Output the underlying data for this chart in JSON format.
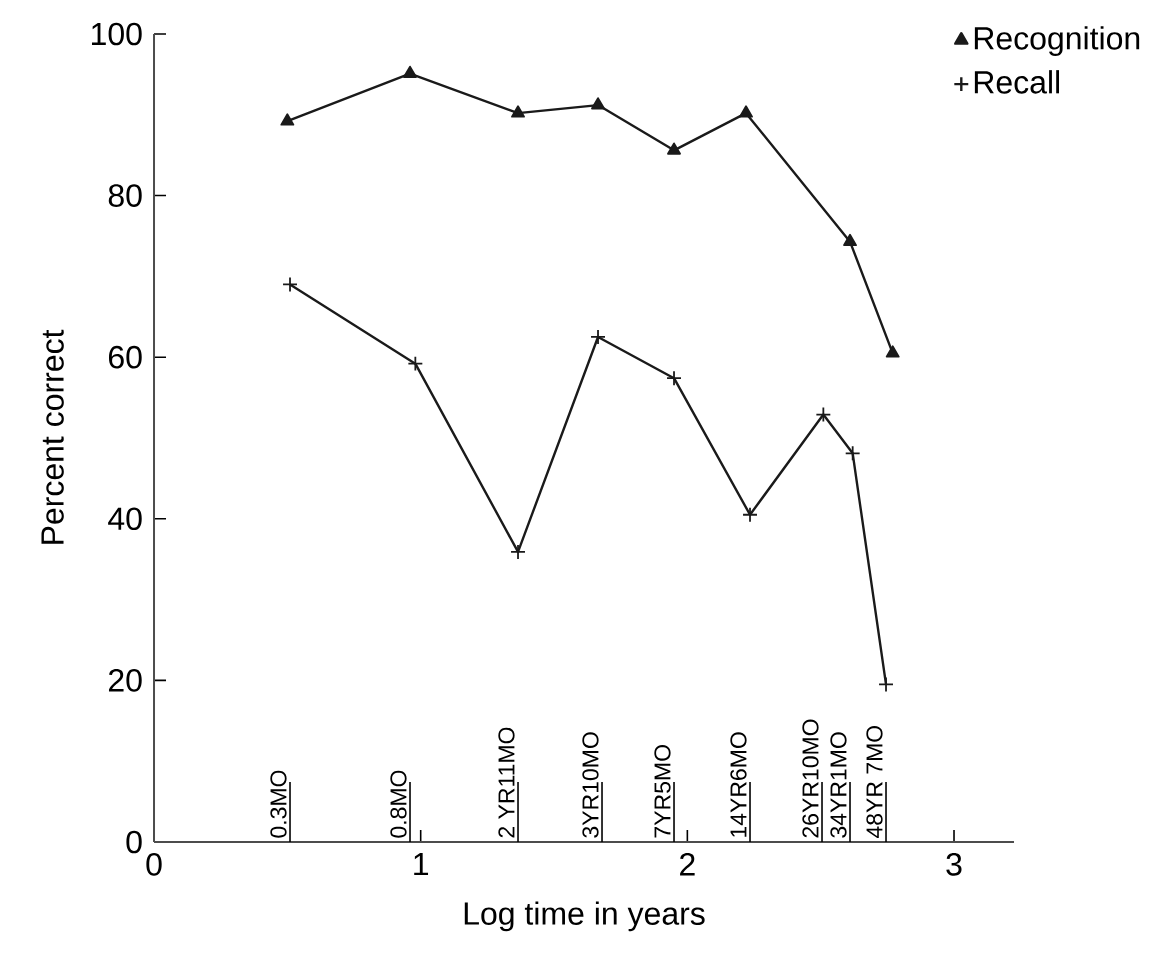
{
  "chart_data": {
    "type": "line",
    "xlabel": "Log time in years",
    "ylabel": "Percent correct",
    "xlim": [
      0,
      3.225
    ],
    "ylim": [
      0,
      100
    ],
    "xticks": [
      0,
      1,
      2,
      3
    ],
    "yticks": [
      0,
      20,
      40,
      60,
      80,
      100
    ],
    "legend": "top right",
    "grid": false,
    "series": [
      {
        "name": "Recognition",
        "color": "#1a1a1a",
        "marker": "triangle",
        "x": [
          0.5,
          0.96,
          1.365,
          1.665,
          1.95,
          2.22,
          2.61,
          2.77
        ],
        "values": [
          89.2,
          95.1,
          90.2,
          91.2,
          85.6,
          90.2,
          74.3,
          60.5
        ]
      },
      {
        "name": "Recall",
        "color": "#1a1a1a",
        "marker": "cross",
        "x": [
          0.51,
          0.98,
          1.365,
          1.665,
          1.95,
          2.235,
          2.51,
          2.62,
          2.745
        ],
        "values": [
          69.0,
          59.2,
          35.9,
          62.5,
          57.4,
          40.5,
          52.9,
          48.1,
          19.5
        ]
      }
    ],
    "ref_lines": [
      {
        "axis": "x",
        "value": 0.51,
        "label": "0.3MO"
      },
      {
        "axis": "x",
        "value": 0.96,
        "label": "0.8MO"
      },
      {
        "axis": "x",
        "value": 1.365,
        "label": "2 YR11MO"
      },
      {
        "axis": "x",
        "value": 1.68,
        "label": "3YR10MO"
      },
      {
        "axis": "x",
        "value": 1.95,
        "label": "7YR5MO"
      },
      {
        "axis": "x",
        "value": 2.235,
        "label": "14YR6MO"
      },
      {
        "axis": "x",
        "value": 2.505,
        "label": "26YR10MO"
      },
      {
        "axis": "x",
        "value": 2.61,
        "label": "34YR1MO"
      },
      {
        "axis": "x",
        "value": 2.745,
        "label": "48YR 7MO"
      }
    ]
  }
}
